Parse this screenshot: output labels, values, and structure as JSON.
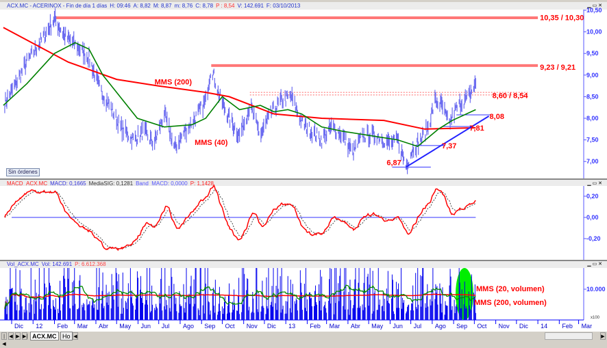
{
  "price_header": {
    "symbol": "ACX.MC - ACERINOX - Fin de día 1 días",
    "H": "H: 09:46",
    "A": "A: 8,82",
    "M": "M: 8,87",
    "m": "m: 8,76",
    "C": "C: 8,78",
    "P": "P : 8,54",
    "V": "V: 142.691",
    "F": "F: 03/10/2013"
  },
  "macd_header": {
    "name": "MACD_ACX.MC",
    "macd": "MACD: 0,1665",
    "sig": "MediaSIG: 0,1281",
    "band": "Band_MACD: 0,0000",
    "p": "P: 1,1428"
  },
  "vol_header": {
    "name": "Vol_ACX.MC",
    "vol": "Vol: 142.691",
    "p": "P: 6.612.368"
  },
  "sin_ordenes": "Sin órdenes",
  "tabs": [
    "ACX.MC",
    "Ho"
  ],
  "window_controls": [
    "minimize-icon",
    "maximize-icon",
    "close-icon"
  ],
  "colors": {
    "price": "#6b6bf0",
    "mms200": "#ff0000",
    "mms40": "#008000",
    "axis": "#3333ff",
    "resistance": "#ff7777",
    "volume": "#0000ee",
    "highlight": "#00ee00"
  },
  "chart_data": [
    {
      "type": "bar",
      "panel": "price",
      "ylim": [
        6.75,
        10.55
      ],
      "yticks": [
        "10,50",
        "10,00",
        "9,50",
        "9,00",
        "8,50",
        "8,00",
        "7,50",
        "7,00"
      ],
      "ytick_values": [
        10.5,
        10,
        9.5,
        9,
        8.5,
        8,
        7.5,
        7
      ],
      "xticks": [
        [
          "2011-12-01",
          "Dic"
        ],
        [
          "2012-01-01",
          "12"
        ],
        [
          "2012-02-01",
          "Feb"
        ],
        [
          "2012-03-01",
          "Mar"
        ],
        [
          "2012-04-01",
          "Abr"
        ],
        [
          "2012-05-01",
          "May"
        ],
        [
          "2012-06-01",
          "Jun"
        ],
        [
          "2012-07-01",
          "Jul"
        ],
        [
          "2012-08-01",
          "Ago"
        ],
        [
          "2012-09-01",
          "Sep"
        ],
        [
          "2012-10-01",
          "Oct"
        ],
        [
          "2012-11-01",
          "Nov"
        ],
        [
          "2012-12-01",
          "Dic"
        ],
        [
          "2013-01-01",
          "13"
        ],
        [
          "2013-02-01",
          "Feb"
        ],
        [
          "2013-03-01",
          "Mar"
        ],
        [
          "2013-04-01",
          "Abr"
        ],
        [
          "2013-05-01",
          "May"
        ],
        [
          "2013-06-01",
          "Jun"
        ],
        [
          "2013-07-01",
          "Jul"
        ],
        [
          "2013-08-01",
          "Ago"
        ],
        [
          "2013-09-01",
          "Sep"
        ],
        [
          "2013-10-01",
          "Oct"
        ],
        [
          "2013-11-01",
          "Nov"
        ],
        [
          "2013-12-01",
          "Dic"
        ],
        [
          "2014-01-01",
          "14"
        ],
        [
          "2014-02-01",
          "Feb"
        ],
        [
          "2014-03-01",
          "Mar"
        ]
      ],
      "price": [
        [
          "2011-11-19",
          8.3
        ],
        [
          "2011-12-04",
          8.7
        ],
        [
          "2011-12-23",
          9.3
        ],
        [
          "2012-01-13",
          9.8
        ],
        [
          "2012-02-01",
          10.3
        ],
        [
          "2012-02-16",
          9.9
        ],
        [
          "2012-03-02",
          9.7
        ],
        [
          "2012-03-22",
          9.4
        ],
        [
          "2012-04-06",
          8.7
        ],
        [
          "2012-04-21",
          8.3
        ],
        [
          "2012-05-06",
          7.8
        ],
        [
          "2012-05-26",
          7.5
        ],
        [
          "2012-06-09",
          7.7
        ],
        [
          "2012-06-24",
          7.4
        ],
        [
          "2012-07-09",
          8.1
        ],
        [
          "2012-07-24",
          7.3
        ],
        [
          "2012-08-08",
          7.7
        ],
        [
          "2012-08-23",
          8.0
        ],
        [
          "2012-09-07",
          8.4
        ],
        [
          "2012-09-15",
          9.2
        ],
        [
          "2012-09-27",
          8.5
        ],
        [
          "2012-10-11",
          8.0
        ],
        [
          "2012-10-26",
          7.6
        ],
        [
          "2012-11-10",
          8.3
        ],
        [
          "2012-11-25",
          7.6
        ],
        [
          "2012-12-10",
          8.1
        ],
        [
          "2012-12-25",
          8.4
        ],
        [
          "2013-01-09",
          8.5
        ],
        [
          "2013-01-24",
          7.9
        ],
        [
          "2013-02-07",
          7.7
        ],
        [
          "2013-02-22",
          7.5
        ],
        [
          "2013-03-09",
          7.8
        ],
        [
          "2013-03-24",
          7.6
        ],
        [
          "2013-04-08",
          7.2
        ],
        [
          "2013-04-23",
          7.6
        ],
        [
          "2013-05-13",
          7.6
        ],
        [
          "2013-06-02",
          7.4
        ],
        [
          "2013-06-12",
          7.5
        ],
        [
          "2013-06-24",
          6.9
        ],
        [
          "2013-07-04",
          7.3
        ],
        [
          "2013-07-16",
          7.5
        ],
        [
          "2013-07-26",
          7.8
        ],
        [
          "2013-08-05",
          8.4
        ],
        [
          "2013-08-15",
          8.3
        ],
        [
          "2013-08-25",
          7.85
        ],
        [
          "2013-09-04",
          8.2
        ],
        [
          "2013-09-14",
          8.4
        ],
        [
          "2013-09-21",
          8.45
        ],
        [
          "2013-10-03",
          8.8
        ]
      ],
      "mms200": [
        [
          "2011-11-19",
          10.1
        ],
        [
          "2012-02-21",
          9.3
        ],
        [
          "2012-05-01",
          8.9
        ],
        [
          "2012-06-30",
          8.75
        ],
        [
          "2012-09-07",
          8.6
        ],
        [
          "2012-10-11",
          8.5
        ],
        [
          "2012-12-15",
          8.1
        ],
        [
          "2013-02-22",
          8.0
        ],
        [
          "2013-05-23",
          7.95
        ],
        [
          "2013-07-21",
          7.75
        ],
        [
          "2013-10-03",
          7.78
        ]
      ],
      "mms40": [
        [
          "2011-11-19",
          8.3
        ],
        [
          "2011-12-23",
          8.8
        ],
        [
          "2012-02-01",
          9.5
        ],
        [
          "2012-03-02",
          9.75
        ],
        [
          "2012-03-22",
          9.6
        ],
        [
          "2012-04-11",
          9.0
        ],
        [
          "2012-05-31",
          8.0
        ],
        [
          "2012-07-09",
          7.8
        ],
        [
          "2012-08-18",
          7.85
        ],
        [
          "2012-09-07",
          8.0
        ],
        [
          "2012-10-01",
          8.5
        ],
        [
          "2012-10-26",
          8.2
        ],
        [
          "2012-11-25",
          8.3
        ],
        [
          "2012-12-15",
          8.15
        ],
        [
          "2013-01-04",
          8.2
        ],
        [
          "2013-01-24",
          8.1
        ],
        [
          "2013-02-22",
          7.8
        ],
        [
          "2013-03-24",
          7.7
        ],
        [
          "2013-05-03",
          7.6
        ],
        [
          "2013-06-12",
          7.5
        ],
        [
          "2013-07-11",
          7.35
        ],
        [
          "2013-08-10",
          7.75
        ],
        [
          "2013-08-30",
          7.95
        ],
        [
          "2013-10-03",
          8.2
        ]
      ],
      "annotations": [
        {
          "label": "MMS (200)",
          "date": "2012-06-25",
          "value": 8.85,
          "color": "#ff0000"
        },
        {
          "label": "MMS (40)",
          "date": "2012-08-22",
          "value": 7.45,
          "color": "#008000"
        },
        {
          "label": "10,35 / 10,30",
          "date": "2014-01-04",
          "value": 10.33,
          "color": "#ff0000"
        },
        {
          "label": "9,23 / 9,21",
          "date": "2014-01-04",
          "value": 9.19,
          "color": "#ff0000"
        },
        {
          "label": "8,60 / 8,54",
          "date": "2013-10-27",
          "value": 8.53,
          "color": "#ff0000"
        },
        {
          "label": "8,08",
          "date": "2013-10-23",
          "value": 8.05,
          "color": "#ff0000"
        },
        {
          "label": "7,81",
          "date": "2013-09-24",
          "value": 7.78,
          "color": "#ff0000"
        },
        {
          "label": "7,37",
          "date": "2013-08-15",
          "value": 7.37,
          "color": "#ff0000"
        },
        {
          "label": "6,87",
          "date": "2013-05-27",
          "value": 6.98,
          "color": "#ff0000"
        }
      ],
      "levels": [
        {
          "from": "2012-02-01",
          "to": "2014-01-01",
          "values": [
            10.35,
            10.3
          ],
          "style": "thick"
        },
        {
          "from": "2012-09-15",
          "to": "2014-01-01",
          "values": [
            9.23,
            9.21
          ],
          "style": "thick"
        },
        {
          "from": "2012-11-10",
          "to": "2013-12-17",
          "values": [
            8.6,
            8.54
          ],
          "style": "dotted"
        },
        {
          "from": "2013-06-04",
          "to": "2013-07-30",
          "values": [
            6.87
          ],
          "style": "thin"
        },
        {
          "from": "2013-07-04",
          "to": "2013-08-20",
          "values": [
            7.37
          ],
          "style": "thin"
        },
        {
          "from": "2013-08-15",
          "to": "2013-09-30",
          "values": [
            7.81
          ],
          "style": "thin"
        },
        {
          "from": "2013-09-05",
          "to": "2013-10-25",
          "values": [
            8.08
          ],
          "style": "thin"
        }
      ],
      "trendline": [
        [
          "2013-06-24",
          6.87
        ],
        [
          "2013-10-22",
          8.05
        ]
      ]
    },
    {
      "type": "line",
      "panel": "macd",
      "ylim": [
        -0.4,
        0.3
      ],
      "yticks": [
        "0,20",
        "0,00",
        "-0,20"
      ],
      "ytick_values": [
        0.2,
        0,
        -0.2
      ],
      "series": [
        "MACD",
        "MediaSIG",
        "Band_MACD"
      ]
    },
    {
      "type": "bar",
      "panel": "volume",
      "yticks": [
        "10.000"
      ],
      "ytick_values": [
        10000
      ],
      "scale_label": "x100",
      "annotations": [
        {
          "label": "MMS (20, volumen)",
          "color": "#008000"
        },
        {
          "label": "MMS (200, volumen)",
          "color": "#ff0000"
        }
      ]
    }
  ]
}
